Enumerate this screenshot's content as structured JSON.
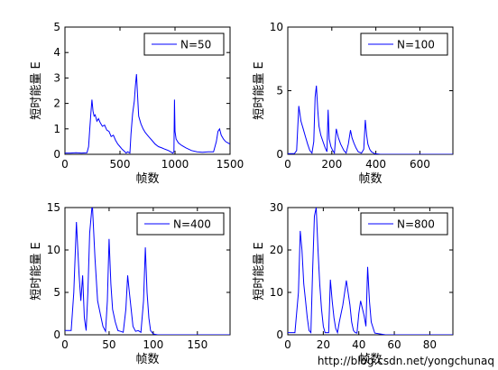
{
  "figure": {
    "watermark": "http://blog.csdn.net/yongchunaq",
    "line_color": "#0000ff"
  },
  "chart_data": [
    {
      "type": "line",
      "xlabel": "帧数",
      "ylabel": "短时能量 E",
      "xlim": [
        0,
        1500
      ],
      "ylim": [
        0,
        5
      ],
      "xticks": [
        0,
        500,
        1000,
        1500
      ],
      "yticks": [
        0,
        1,
        2,
        3,
        4,
        5
      ],
      "legend_position": "top-right",
      "grid": false,
      "series": [
        {
          "name": "N=50",
          "x": [
            0,
            50,
            100,
            150,
            200,
            215,
            225,
            235,
            245,
            255,
            265,
            275,
            290,
            305,
            320,
            340,
            360,
            380,
            400,
            420,
            440,
            460,
            480,
            500,
            520,
            545,
            555,
            570,
            590,
            600,
            615,
            630,
            640,
            650,
            660,
            670,
            690,
            710,
            730,
            760,
            790,
            820,
            850,
            880,
            910,
            940,
            960,
            980,
            990,
            995,
            1000,
            1010,
            1030,
            1060,
            1100,
            1150,
            1200,
            1250,
            1300,
            1350,
            1375,
            1390,
            1405,
            1420,
            1440,
            1460,
            1480,
            1500
          ],
          "y": [
            0.05,
            0.05,
            0.06,
            0.05,
            0.06,
            0.3,
            1.0,
            1.6,
            2.15,
            1.7,
            1.5,
            1.55,
            1.3,
            1.4,
            1.25,
            1.1,
            1.15,
            0.95,
            0.9,
            0.7,
            0.75,
            0.55,
            0.4,
            0.3,
            0.2,
            0.1,
            0.05,
            0.1,
            0.05,
            0.8,
            1.6,
            2.1,
            2.7,
            3.15,
            2.3,
            1.5,
            1.2,
            1.0,
            0.85,
            0.7,
            0.55,
            0.4,
            0.3,
            0.25,
            0.2,
            0.15,
            0.1,
            0.05,
            0.1,
            2.15,
            0.9,
            0.6,
            0.45,
            0.35,
            0.25,
            0.15,
            0.1,
            0.08,
            0.1,
            0.1,
            0.5,
            0.9,
            1.0,
            0.75,
            0.6,
            0.5,
            0.45,
            0.4
          ]
        }
      ]
    },
    {
      "type": "line",
      "xlabel": "帧数",
      "ylabel": "短时能量 E",
      "xlim": [
        0,
        750
      ],
      "ylim": [
        0,
        10
      ],
      "xticks": [
        0,
        200,
        400,
        600
      ],
      "yticks": [
        0,
        5,
        10
      ],
      "legend_position": "top-right",
      "grid": false,
      "series": [
        {
          "name": "N=100",
          "x": [
            0,
            30,
            40,
            50,
            60,
            70,
            80,
            90,
            100,
            110,
            118,
            124,
            130,
            136,
            142,
            150,
            160,
            170,
            178,
            183,
            188,
            196,
            204,
            212,
            220,
            230,
            240,
            255,
            265,
            275,
            285,
            292,
            300,
            310,
            320,
            335,
            345,
            352,
            358,
            364,
            372,
            380,
            395,
            420,
            500,
            600,
            700,
            750
          ],
          "y": [
            0.05,
            0.05,
            0.3,
            3.8,
            2.6,
            2.0,
            1.4,
            0.8,
            0.3,
            0.1,
            1.0,
            4.5,
            5.4,
            3.5,
            2.2,
            1.5,
            1.0,
            0.5,
            0.2,
            3.5,
            1.2,
            0.6,
            0.3,
            0.1,
            2.0,
            1.3,
            0.8,
            0.3,
            0.1,
            0.8,
            1.9,
            1.3,
            0.9,
            0.5,
            0.2,
            0.1,
            0.4,
            2.7,
            1.5,
            0.8,
            0.4,
            0.2,
            0.05,
            0.0,
            0.0,
            0.0,
            0.0,
            0.0
          ]
        }
      ]
    },
    {
      "type": "line",
      "xlabel": "帧数",
      "ylabel": "短时能量 E",
      "xlim": [
        0,
        187
      ],
      "ylim": [
        0,
        15
      ],
      "xticks": [
        0,
        50,
        100,
        150
      ],
      "yticks": [
        0,
        5,
        10,
        15
      ],
      "legend_position": "top-right",
      "grid": false,
      "series": [
        {
          "name": "N=400",
          "x": [
            0,
            7,
            10,
            13,
            16,
            18,
            20,
            22,
            24,
            26,
            28,
            31,
            34,
            37,
            40,
            43,
            46,
            48,
            50,
            52,
            54,
            57,
            60,
            63,
            66,
            69,
            71,
            73,
            75,
            77,
            80,
            83,
            86,
            89,
            91,
            93,
            95,
            97,
            100,
            105,
            120,
            150,
            187
          ],
          "y": [
            0.5,
            0.5,
            5.0,
            13.3,
            7.0,
            4.0,
            7.0,
            2.0,
            0.5,
            5.0,
            12.0,
            15.5,
            9.0,
            4.0,
            2.5,
            1.0,
            0.4,
            4.0,
            11.3,
            6.0,
            3.0,
            1.5,
            0.5,
            0.4,
            0.3,
            3.0,
            7.0,
            5.0,
            3.0,
            1.0,
            0.4,
            0.5,
            0.3,
            4.0,
            10.3,
            5.0,
            2.0,
            0.5,
            0.1,
            0.0,
            0.0,
            0.0,
            0.0
          ]
        }
      ]
    },
    {
      "type": "line",
      "xlabel": "帧数",
      "ylabel": "短时能量 E",
      "xlim": [
        0,
        93
      ],
      "ylim": [
        0,
        30
      ],
      "xticks": [
        0,
        20,
        40,
        60,
        80
      ],
      "yticks": [
        0,
        10,
        20,
        30
      ],
      "legend_position": "top-right",
      "grid": false,
      "series": [
        {
          "name": "N=800",
          "x": [
            0,
            4,
            6,
            7,
            8,
            9,
            10,
            11,
            12,
            13,
            14,
            15,
            16,
            17,
            18,
            19,
            20,
            21,
            23,
            24,
            25,
            26,
            27,
            28,
            29,
            31,
            33,
            35,
            36,
            37,
            38,
            39,
            40,
            41,
            43,
            44,
            45,
            46,
            47,
            49,
            55,
            70,
            93
          ],
          "y": [
            0.5,
            0.5,
            10.0,
            24.5,
            20.0,
            12.0,
            8.0,
            4.0,
            1.0,
            0.5,
            15.0,
            28.0,
            30.0,
            20.0,
            12.0,
            6.0,
            2.0,
            0.5,
            0.5,
            13.0,
            8.0,
            4.0,
            1.5,
            0.5,
            3.0,
            7.0,
            12.8,
            7.0,
            3.0,
            1.0,
            0.5,
            0.4,
            5.0,
            8.0,
            4.5,
            2.0,
            16.0,
            8.0,
            3.0,
            0.4,
            0.0,
            0.0,
            0.0
          ]
        }
      ]
    }
  ]
}
